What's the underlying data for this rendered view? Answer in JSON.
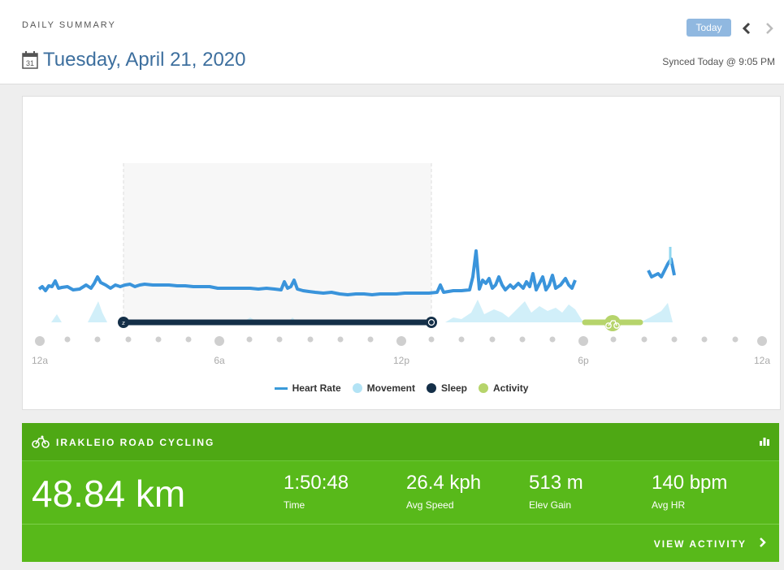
{
  "header": {
    "section_label": "DAILY SUMMARY",
    "date": "Tuesday, April 21, 2020",
    "calendar_day": "31",
    "today_button": "Today",
    "synced": "Synced Today @ 9:05 PM"
  },
  "chart": {
    "time_labels": [
      "12a",
      "6a",
      "12p",
      "6p",
      "12a"
    ],
    "legend": [
      {
        "label": "Heart Rate",
        "color": "#3a9ad9"
      },
      {
        "label": "Movement",
        "color": "#b3e3f5"
      },
      {
        "label": "Sleep",
        "color": "#142f48"
      },
      {
        "label": "Activity",
        "color": "#b6d46b"
      }
    ]
  },
  "activity": {
    "title": "IRAKLEIO ROAD CYCLING",
    "distance": "48.84 km",
    "stats": [
      {
        "value": "1:50:48",
        "label": "Time"
      },
      {
        "value": "26.4 kph",
        "label": "Avg Speed"
      },
      {
        "value": "513 m",
        "label": "Elev Gain"
      },
      {
        "value": "140 bpm",
        "label": "Avg HR"
      }
    ],
    "view_link": "VIEW ACTIVITY",
    "accent_color": "#58b91a"
  }
}
